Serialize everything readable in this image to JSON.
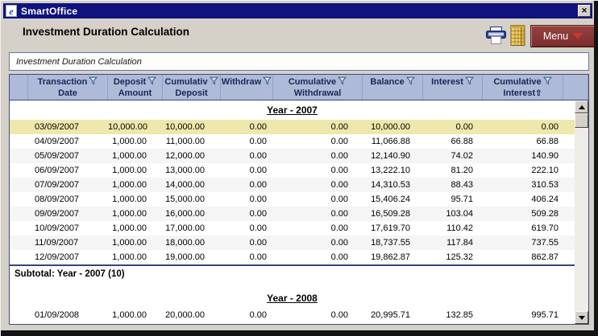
{
  "window": {
    "title": "SmartOffice",
    "close_label": "✕"
  },
  "page": {
    "title": "Investment Duration Calculation",
    "subtitle": "Investment Duration Calculation",
    "menu_label": "Menu"
  },
  "colors": {
    "titlebar": "#10127E",
    "menu_button": "#7C2D2D",
    "menu_caret": "#C73A29",
    "header_bg": "#AEBAD8",
    "header_text": "#1A2755",
    "table_border": "#3A4A7D",
    "selected_row": "#EFE8AC",
    "alt_row": "#F5F5F5"
  },
  "icons": {
    "titlebar_app": "ie-page-icon",
    "toolbar": [
      "printer-icon",
      "spreadsheet-icon"
    ],
    "header_filter": "filter-funnel-icon",
    "sort_ascending": "⇧"
  },
  "table": {
    "columns": [
      {
        "line1": "",
        "line2": "",
        "filter": false
      },
      {
        "line1": "Transaction",
        "line2": "Date",
        "filter": true
      },
      {
        "line1": "Deposit",
        "line2": "Amount",
        "filter": true
      },
      {
        "line1": "Cumulativ",
        "line2": "Deposit",
        "filter": true
      },
      {
        "line1": "Withdraw",
        "line2": "",
        "filter": true
      },
      {
        "line1": "Cumulative",
        "line2": "Withdrawal",
        "filter": true
      },
      {
        "line1": "Balance",
        "line2": "",
        "filter": true
      },
      {
        "line1": "Interest",
        "line2": "",
        "filter": true
      },
      {
        "line1": "Cumulative",
        "line2": "Interest",
        "filter": true,
        "sort": "⇧"
      },
      {
        "line1": "",
        "line2": "",
        "filter": false
      }
    ],
    "sections": [
      {
        "year_label": "Year - 2007",
        "subtotal": "Subtotal: Year - 2007 (10)",
        "rows": [
          {
            "bg": "selected",
            "cells": [
              "03/09/2007",
              "10,000.00",
              "10,000.00",
              "0.00",
              "0.00",
              "10,000.00",
              "0.00",
              "0.00"
            ]
          },
          {
            "bg": "white",
            "cells": [
              "04/09/2007",
              "1,000.00",
              "11,000.00",
              "0.00",
              "0.00",
              "11,066.88",
              "66.88",
              "66.88"
            ]
          },
          {
            "bg": "gray",
            "cells": [
              "05/09/2007",
              "1,000.00",
              "12,000.00",
              "0.00",
              "0.00",
              "12,140.90",
              "74.02",
              "140.90"
            ]
          },
          {
            "bg": "white",
            "cells": [
              "06/09/2007",
              "1,000.00",
              "13,000.00",
              "0.00",
              "0.00",
              "13,222.10",
              "81.20",
              "222.10"
            ]
          },
          {
            "bg": "gray",
            "cells": [
              "07/09/2007",
              "1,000.00",
              "14,000.00",
              "0.00",
              "0.00",
              "14,310.53",
              "88.43",
              "310.53"
            ]
          },
          {
            "bg": "white",
            "cells": [
              "08/09/2007",
              "1,000.00",
              "15,000.00",
              "0.00",
              "0.00",
              "15,406.24",
              "95.71",
              "406.24"
            ]
          },
          {
            "bg": "gray",
            "cells": [
              "09/09/2007",
              "1,000.00",
              "16,000.00",
              "0.00",
              "0.00",
              "16,509.28",
              "103.04",
              "509.28"
            ]
          },
          {
            "bg": "white",
            "cells": [
              "10/09/2007",
              "1,000.00",
              "17,000.00",
              "0.00",
              "0.00",
              "17,619.70",
              "110.42",
              "619.70"
            ]
          },
          {
            "bg": "gray",
            "cells": [
              "11/09/2007",
              "1,000.00",
              "18,000.00",
              "0.00",
              "0.00",
              "18,737.55",
              "117.84",
              "737.55"
            ]
          },
          {
            "bg": "white",
            "cells": [
              "12/09/2007",
              "1,000.00",
              "19,000.00",
              "0.00",
              "0.00",
              "19,862.87",
              "125.32",
              "862.87"
            ]
          }
        ]
      },
      {
        "year_label": "Year - 2008",
        "subtotal": null,
        "rows": [
          {
            "bg": "white",
            "cells": [
              "01/09/2008",
              "1,000.00",
              "20,000.00",
              "0.00",
              "0.00",
              "20,995.71",
              "132.85",
              "995.71"
            ]
          }
        ]
      }
    ]
  }
}
